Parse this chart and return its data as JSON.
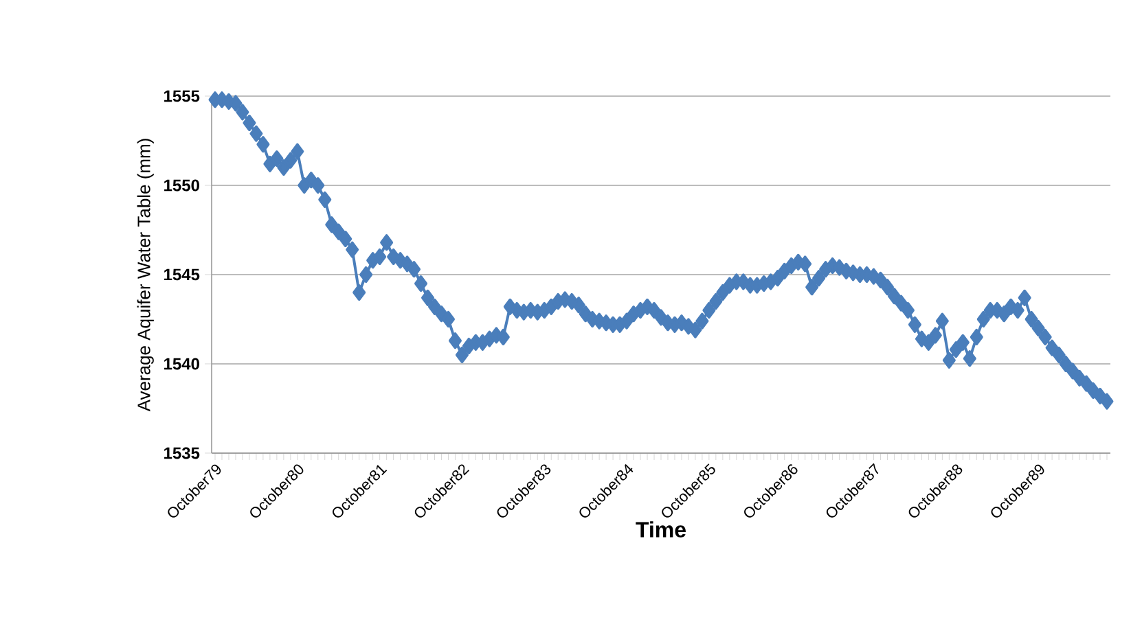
{
  "chart_data": {
    "type": "line",
    "xlabel": "Time",
    "ylabel": "Average Aquifer  Water Table (mm)",
    "categories": [
      "October79",
      null,
      null,
      null,
      null,
      null,
      null,
      null,
      null,
      null,
      null,
      null,
      "October80",
      null,
      null,
      null,
      null,
      null,
      null,
      null,
      null,
      null,
      null,
      null,
      "October81",
      null,
      null,
      null,
      null,
      null,
      null,
      null,
      null,
      null,
      null,
      null,
      "October82",
      null,
      null,
      null,
      null,
      null,
      null,
      null,
      null,
      null,
      null,
      null,
      "October83",
      null,
      null,
      null,
      null,
      null,
      null,
      null,
      null,
      null,
      null,
      null,
      "October84",
      null,
      null,
      null,
      null,
      null,
      null,
      null,
      null,
      null,
      null,
      null,
      "October85",
      null,
      null,
      null,
      null,
      null,
      null,
      null,
      null,
      null,
      null,
      null,
      "October86",
      null,
      null,
      null,
      null,
      null,
      null,
      null,
      null,
      null,
      null,
      null,
      "October87",
      null,
      null,
      null,
      null,
      null,
      null,
      null,
      null,
      null,
      null,
      null,
      "October88",
      null,
      null,
      null,
      null,
      null,
      null,
      null,
      null,
      null,
      null,
      null,
      "October89",
      null,
      null,
      null,
      null,
      null,
      null,
      null,
      null,
      null,
      null
    ],
    "values": [
      1554.8,
      1554.8,
      1554.7,
      1554.6,
      1554.1,
      1553.5,
      1552.9,
      1552.3,
      1551.2,
      1551.5,
      1551.0,
      1551.4,
      1551.9,
      1550.0,
      1550.3,
      1550.0,
      1549.2,
      1547.8,
      1547.4,
      1547.0,
      1546.4,
      1544.0,
      1545.0,
      1545.8,
      1546.0,
      1546.8,
      1546.0,
      1545.8,
      1545.6,
      1545.3,
      1544.5,
      1543.7,
      1543.2,
      1542.8,
      1542.5,
      1541.3,
      1540.5,
      1541.0,
      1541.2,
      1541.2,
      1541.4,
      1541.6,
      1541.5,
      1543.2,
      1543.0,
      1542.9,
      1543.0,
      1542.9,
      1543.0,
      1543.2,
      1543.5,
      1543.6,
      1543.5,
      1543.3,
      1542.8,
      1542.5,
      1542.4,
      1542.3,
      1542.2,
      1542.2,
      1542.4,
      1542.8,
      1543.0,
      1543.2,
      1543.0,
      1542.6,
      1542.3,
      1542.2,
      1542.3,
      1542.1,
      1541.9,
      1542.4,
      1543.0,
      1543.5,
      1544.0,
      1544.4,
      1544.6,
      1544.6,
      1544.4,
      1544.4,
      1544.5,
      1544.6,
      1544.8,
      1545.2,
      1545.5,
      1545.7,
      1545.6,
      1544.3,
      1544.8,
      1545.3,
      1545.5,
      1545.4,
      1545.2,
      1545.1,
      1545.0,
      1545.0,
      1544.9,
      1544.7,
      1544.3,
      1543.8,
      1543.4,
      1543.0,
      1542.2,
      1541.4,
      1541.2,
      1541.6,
      1542.4,
      1540.2,
      1540.8,
      1541.2,
      1540.3,
      1541.5,
      1542.5,
      1543.0,
      1543.0,
      1542.8,
      1543.2,
      1543.0,
      1543.7,
      1542.5,
      1542.0,
      1541.5,
      1540.9,
      1540.5,
      1540.0,
      1539.6,
      1539.2,
      1538.9,
      1538.5,
      1538.2,
      1537.9
    ],
    "color": "#4a7ebb",
    "marker": "diamond",
    "ylim": [
      1535,
      1555
    ],
    "yticks": [
      1535,
      1540,
      1545,
      1550,
      1555
    ],
    "grid": "y"
  }
}
